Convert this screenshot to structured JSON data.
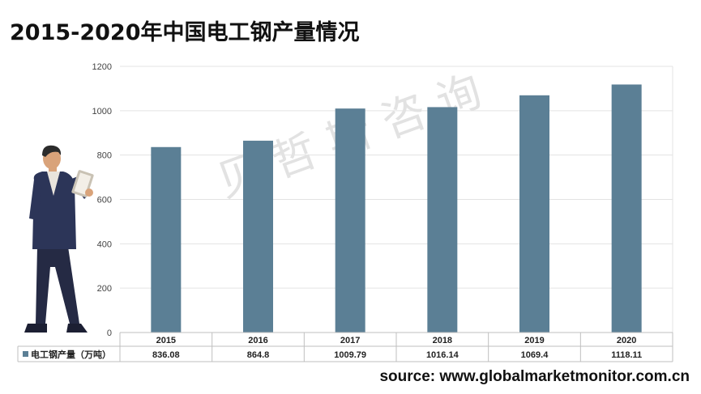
{
  "title": "2015-2020年中国电工钢产量情况",
  "watermark": "贝哲斯咨询",
  "source": "source: www.globalmarketmonitor.com.cn",
  "colors": {
    "bar": "#5b7f95",
    "grid": "#e3e3e3",
    "axis": "#bfbfbf"
  },
  "chart_data": {
    "type": "bar",
    "categories": [
      "2015",
      "2016",
      "2017",
      "2018",
      "2019",
      "2020"
    ],
    "series": [
      {
        "name": "电工钢产量（万吨）",
        "values": [
          836.08,
          864.8,
          1009.79,
          1016.14,
          1069.4,
          1118.11
        ]
      }
    ],
    "value_labels": [
      "836.08",
      "864.8",
      "1009.79",
      "1016.14",
      "1069.4",
      "1118.11"
    ],
    "ylim": [
      0,
      1200
    ],
    "yticks": [
      0,
      200,
      400,
      600,
      800,
      1000,
      1200
    ],
    "grid": true,
    "data_table": true
  }
}
